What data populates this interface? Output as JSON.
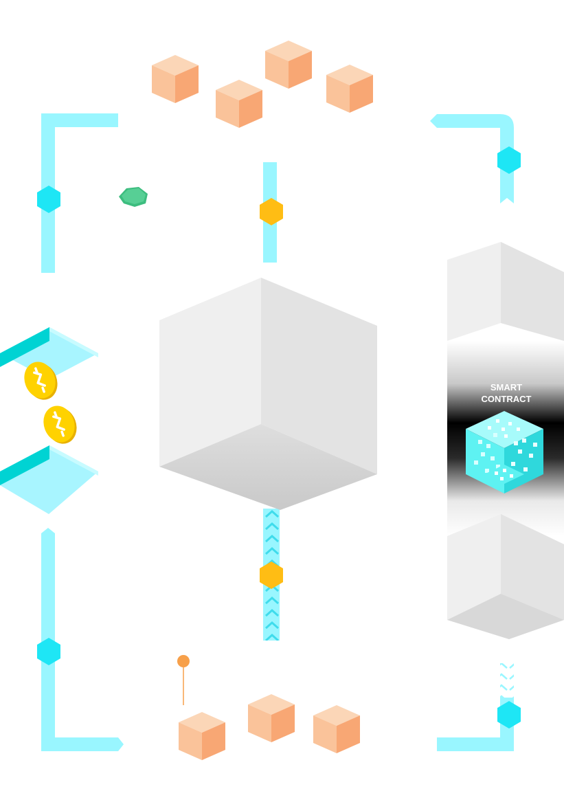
{
  "smart_contract": {
    "label_line1": "SMART",
    "label_line2": "CONTRACT"
  },
  "colors": {
    "connector": "#99f6ff",
    "connector_dark": "#3fdcec",
    "node_cyan": "#1ee6f5",
    "node_orange": "#ffbd14",
    "node_green": "#57cf95",
    "block_orange_top": "#fbd6b7",
    "block_orange_left": "#fac39a",
    "block_orange_right": "#f8a774",
    "cube_gray_left": "#efefef",
    "cube_gray_right": "#e3e3e3",
    "cube_gray_bottom": "#d2d2d2",
    "coin": "#ffd200",
    "coin_dark": "#e8b100",
    "tray_top": "#a8f5ff",
    "tray_side": "#00d3d3",
    "contract_band": "#000000",
    "contract_cube": "#5ef2f2",
    "label_text": "#ffffff",
    "pin": "#f7a04a"
  },
  "icons": {
    "coin": "dollar-coin-icon",
    "contract": "smart-contract-cube-icon"
  }
}
